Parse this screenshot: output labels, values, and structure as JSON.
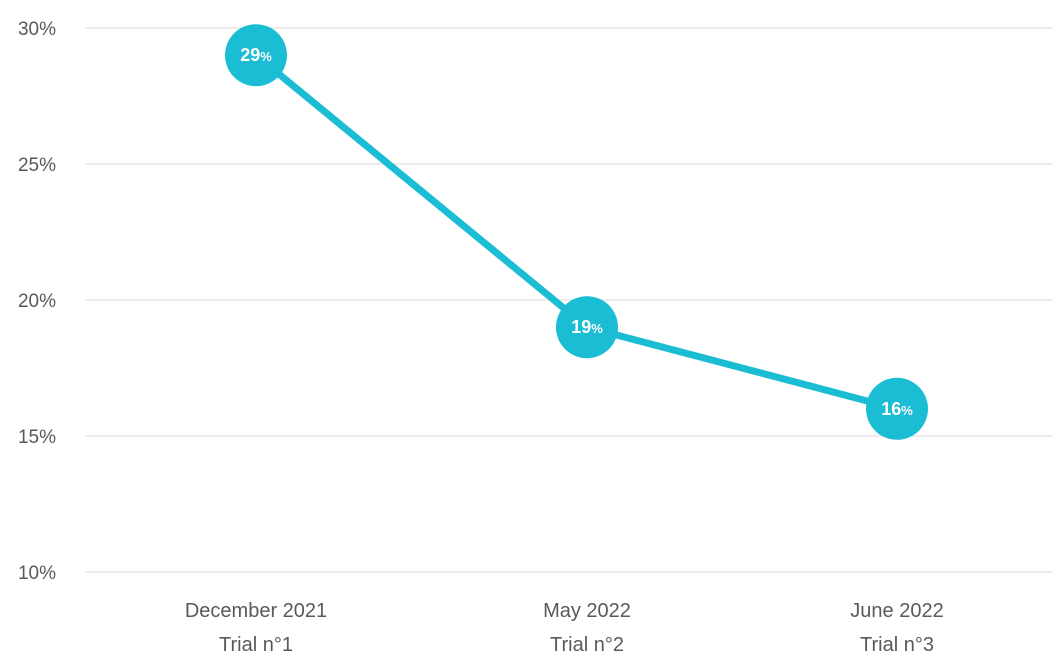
{
  "chart_data": {
    "type": "line",
    "categories": [
      [
        "December 2021",
        "Trial n°1"
      ],
      [
        "May 2022",
        "Trial n°2"
      ],
      [
        "June 2022",
        "Trial n°3"
      ]
    ],
    "y_ticks": [
      "10%",
      "15%",
      "20%",
      "25%",
      "30%"
    ],
    "ylim": [
      10,
      30
    ],
    "grid": true,
    "series": [
      {
        "values": [
          29,
          19,
          16
        ],
        "data_labels": [
          "29",
          "19",
          "16"
        ],
        "label_suffix": "%",
        "color": "#1bbdd4"
      }
    ]
  }
}
